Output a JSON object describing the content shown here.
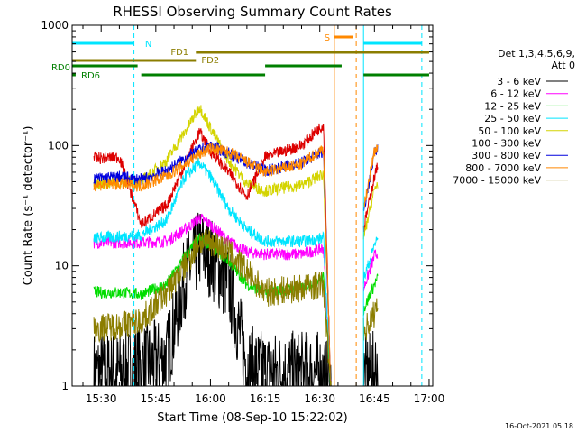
{
  "chart_data": {
    "type": "line",
    "title": "RHESSI Observing Summary Count Rates",
    "xlabel": "Start Time (08-Sep-10 15:22:02)",
    "ylabel": "Count Rate (s⁻¹ detector⁻¹)",
    "xlim": [
      "15:22:02",
      "17:01:00"
    ],
    "x_ticks": [
      "15:30",
      "15:45",
      "16:00",
      "16:15",
      "16:30",
      "16:45",
      "17:00"
    ],
    "y_scale": "log",
    "ylim": [
      1,
      1000
    ],
    "y_ticks": [
      "1",
      "10",
      "100",
      "1000"
    ],
    "legend_placement": "right",
    "legend_header": [
      "Det 1,3,4,5,6,9,",
      "Att 0"
    ],
    "series": [
      {
        "name": "3 - 6 keV",
        "color": "#000000",
        "keyframes": [
          [
            "15:28",
            1.3
          ],
          [
            "15:35",
            1.3
          ],
          [
            "15:41",
            1.5
          ],
          [
            "15:48",
            1.7
          ],
          [
            "15:53",
            8
          ],
          [
            "15:57",
            14
          ],
          [
            "16:00",
            12
          ],
          [
            "16:05",
            7
          ],
          [
            "16:10",
            1.5
          ],
          [
            "16:15",
            1.3
          ],
          [
            "16:30",
            1.3
          ],
          [
            "16:33",
            1
          ],
          [
            "16:45",
            1.3
          ],
          [
            "16:46",
            1.6
          ]
        ]
      },
      {
        "name": "6 - 12 keV",
        "color": "#ff00ff",
        "keyframes": [
          [
            "15:28",
            15.6
          ],
          [
            "15:35",
            15.6
          ],
          [
            "15:41",
            15.6
          ],
          [
            "15:48",
            16
          ],
          [
            "15:53",
            20
          ],
          [
            "15:57",
            25
          ],
          [
            "16:00",
            22
          ],
          [
            "16:05",
            16
          ],
          [
            "16:10",
            13
          ],
          [
            "16:15",
            12.5
          ],
          [
            "16:25",
            12.5
          ],
          [
            "16:31",
            14
          ],
          [
            "16:33",
            1
          ],
          [
            "16:45",
            12
          ],
          [
            "16:46",
            13
          ]
        ]
      },
      {
        "name": "12 - 25 keV",
        "color": "#00dd00",
        "keyframes": [
          [
            "15:28",
            6
          ],
          [
            "15:35",
            6
          ],
          [
            "15:41",
            5.8
          ],
          [
            "15:48",
            7
          ],
          [
            "15:53",
            12
          ],
          [
            "15:57",
            17
          ],
          [
            "16:00",
            15
          ],
          [
            "16:05",
            11
          ],
          [
            "16:10",
            7
          ],
          [
            "16:15",
            6
          ],
          [
            "16:25",
            6.5
          ],
          [
            "16:31",
            8
          ],
          [
            "16:33",
            1
          ],
          [
            "16:45",
            7
          ],
          [
            "16:46",
            8
          ]
        ]
      },
      {
        "name": "25 - 50 keV",
        "color": "#00e5ff",
        "keyframes": [
          [
            "15:28",
            17
          ],
          [
            "15:35",
            17.5
          ],
          [
            "15:41",
            18
          ],
          [
            "15:48",
            24
          ],
          [
            "15:53",
            55
          ],
          [
            "15:57",
            72
          ],
          [
            "16:00",
            55
          ],
          [
            "16:05",
            30
          ],
          [
            "16:10",
            20
          ],
          [
            "16:15",
            16
          ],
          [
            "16:25",
            16
          ],
          [
            "16:31",
            17
          ],
          [
            "16:33",
            1
          ],
          [
            "16:45",
            15
          ],
          [
            "16:46",
            17
          ]
        ]
      },
      {
        "name": "50 - 100 keV",
        "color": "#d4d400",
        "keyframes": [
          [
            "15:28",
            48
          ],
          [
            "15:35",
            50
          ],
          [
            "15:41",
            50
          ],
          [
            "15:48",
            75
          ],
          [
            "15:53",
            130
          ],
          [
            "15:57",
            210
          ],
          [
            "16:00",
            140
          ],
          [
            "16:05",
            75
          ],
          [
            "16:10",
            48
          ],
          [
            "16:15",
            42
          ],
          [
            "16:25",
            47
          ],
          [
            "16:31",
            58
          ],
          [
            "16:33",
            1
          ],
          [
            "16:45",
            43
          ],
          [
            "16:46",
            50
          ]
        ]
      },
      {
        "name": "100 - 300 keV",
        "color": "#dd0000",
        "keyframes": [
          [
            "15:28",
            78
          ],
          [
            "15:35",
            80
          ],
          [
            "15:41",
            22
          ],
          [
            "15:48",
            32
          ],
          [
            "15:53",
            70
          ],
          [
            "15:57",
            130
          ],
          [
            "16:00",
            90
          ],
          [
            "16:05",
            60
          ],
          [
            "16:10",
            38
          ],
          [
            "16:15",
            80
          ],
          [
            "16:25",
            100
          ],
          [
            "16:31",
            150
          ],
          [
            "16:33",
            1
          ],
          [
            "16:45",
            55
          ],
          [
            "16:46",
            70
          ]
        ]
      },
      {
        "name": "300 - 800 keV",
        "color": "#0000dd",
        "keyframes": [
          [
            "15:28",
            53
          ],
          [
            "15:35",
            55
          ],
          [
            "15:41",
            52
          ],
          [
            "15:48",
            62
          ],
          [
            "15:53",
            78
          ],
          [
            "15:57",
            92
          ],
          [
            "16:00",
            100
          ],
          [
            "16:05",
            86
          ],
          [
            "16:10",
            72
          ],
          [
            "16:15",
            62
          ],
          [
            "16:25",
            72
          ],
          [
            "16:31",
            90
          ],
          [
            "16:33",
            1
          ],
          [
            "16:45",
            85
          ],
          [
            "16:46",
            95
          ]
        ]
      },
      {
        "name": "800 - 7000 keV",
        "color": "#ff8800",
        "keyframes": [
          [
            "15:28",
            47
          ],
          [
            "15:35",
            48
          ],
          [
            "15:41",
            46
          ],
          [
            "15:48",
            56
          ],
          [
            "15:53",
            70
          ],
          [
            "15:57",
            85
          ],
          [
            "16:00",
            95
          ],
          [
            "16:05",
            88
          ],
          [
            "16:10",
            73
          ],
          [
            "16:15",
            60
          ],
          [
            "16:25",
            70
          ],
          [
            "16:31",
            95
          ],
          [
            "16:33",
            1
          ],
          [
            "16:45",
            90
          ],
          [
            "16:46",
            100
          ]
        ]
      },
      {
        "name": "7000 - 15000 keV",
        "color": "#8b7d00",
        "keyframes": [
          [
            "15:28",
            3
          ],
          [
            "15:35",
            3.2
          ],
          [
            "15:41",
            3.5
          ],
          [
            "15:48",
            6
          ],
          [
            "15:53",
            10
          ],
          [
            "15:57",
            16
          ],
          [
            "16:00",
            16
          ],
          [
            "16:05",
            13
          ],
          [
            "16:10",
            9
          ],
          [
            "16:15",
            6
          ],
          [
            "16:25",
            6.5
          ],
          [
            "16:31",
            7
          ],
          [
            "16:33",
            1
          ],
          [
            "16:45",
            4
          ],
          [
            "16:46",
            5
          ]
        ]
      }
    ],
    "data_gap": [
      "16:33",
      "16:42"
    ],
    "state_bars": [
      {
        "label": "N",
        "color": "#00e5ff",
        "segments": [
          [
            "15:22:02",
            "15:39"
          ],
          [
            "16:42",
            "16:58"
          ]
        ]
      },
      {
        "label": "S",
        "color": "#ff8800",
        "segments": [
          [
            "16:34",
            "16:39"
          ]
        ]
      },
      {
        "label": "FD1",
        "color": "#8b7d00",
        "segments": [
          [
            "15:22:02",
            "15:56"
          ]
        ]
      },
      {
        "label": "FD2",
        "color": "#8b7d00",
        "segments": [
          [
            "15:56",
            "17:00"
          ]
        ]
      },
      {
        "label": "RD0",
        "color": "#007f00",
        "segments": [
          [
            "15:22:02",
            "15:40"
          ],
          [
            "16:15",
            "16:36"
          ]
        ]
      },
      {
        "label": "RD6",
        "color": "#007f00",
        "segments": [
          [
            "15:22:02",
            "15:23"
          ],
          [
            "15:41",
            "16:15"
          ],
          [
            "16:42",
            "17:00"
          ]
        ]
      }
    ],
    "vertical_markers": [
      {
        "time": "15:22:02",
        "color": "#00e5ff",
        "style": "solid"
      },
      {
        "time": "15:39",
        "color": "#00e5ff",
        "style": "dashed"
      },
      {
        "time": "16:34",
        "color": "#ff8800",
        "style": "solid"
      },
      {
        "time": "16:40",
        "color": "#ff8800",
        "style": "dashed"
      },
      {
        "time": "16:42",
        "color": "#00e5ff",
        "style": "solid"
      },
      {
        "time": "16:58",
        "color": "#00e5ff",
        "style": "dashed"
      }
    ],
    "footer_timestamp": "16-Oct-2021 05:18"
  }
}
